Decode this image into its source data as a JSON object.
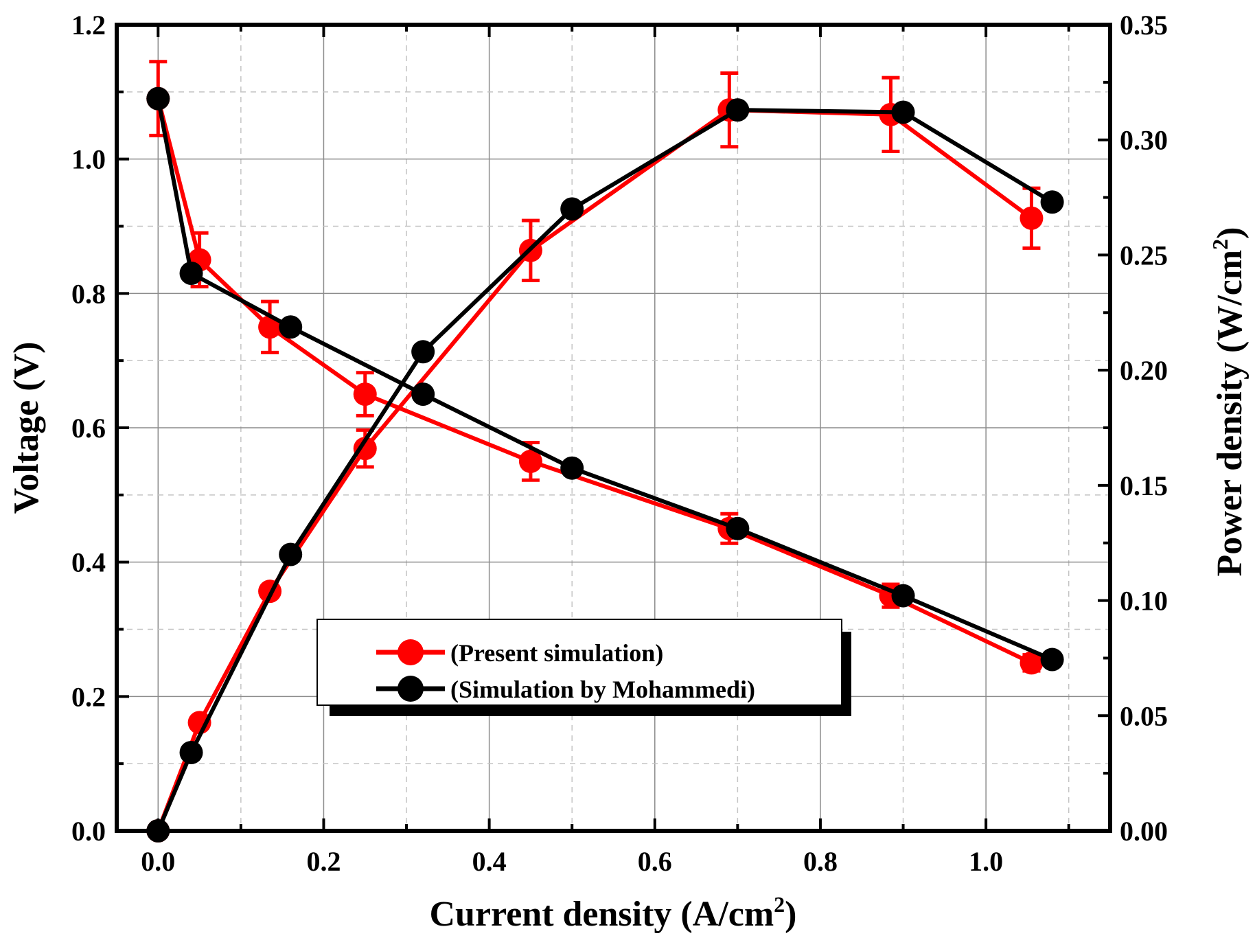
{
  "chart_data": {
    "type": "line",
    "xlabel": "Current density (A/cm",
    "xlabel_sup": "2",
    "xlabel_end": ")",
    "ylabel_left": "Voltage (V)",
    "ylabel_right": "Power density (W/cm",
    "ylabel_right_sup": "2",
    "ylabel_right_end": ")",
    "xlim": [
      -0.05,
      1.15
    ],
    "ylim_left": [
      0,
      1.2
    ],
    "ylim_right": [
      0,
      0.35
    ],
    "x_ticks": [
      "0.0",
      "0.2",
      "0.4",
      "0.6",
      "0.8",
      "1.0"
    ],
    "x_tick_values": [
      0,
      0.2,
      0.4,
      0.6,
      0.8,
      1.0
    ],
    "y_left_ticks": [
      "0.0",
      "0.2",
      "0.4",
      "0.6",
      "0.8",
      "1.0",
      "1.2"
    ],
    "y_left_tick_values": [
      0,
      0.2,
      0.4,
      0.6,
      0.8,
      1.0,
      1.2
    ],
    "y_right_ticks": [
      "0.00",
      "0.05",
      "0.10",
      "0.15",
      "0.20",
      "0.25",
      "0.30",
      "0.35"
    ],
    "y_right_tick_values": [
      0,
      0.05,
      0.1,
      0.15,
      0.2,
      0.25,
      0.3,
      0.35
    ],
    "grid": true,
    "legend_position": "lower-center",
    "series": [
      {
        "name": "(Present simulation)",
        "color": "#ff0000",
        "voltage": {
          "x": [
            0.0,
            0.05,
            0.135,
            0.25,
            0.45,
            0.69,
            0.885,
            1.055
          ],
          "y": [
            1.09,
            0.85,
            0.75,
            0.65,
            0.55,
            0.45,
            0.35,
            0.25
          ],
          "err": [
            0.055,
            0.04,
            0.038,
            0.032,
            0.028,
            0.022,
            0.017,
            0.012
          ]
        },
        "power": {
          "x": [
            0.0,
            0.05,
            0.135,
            0.25,
            0.45,
            0.69,
            0.885,
            1.055
          ],
          "y": [
            0.0,
            0.047,
            0.104,
            0.166,
            0.252,
            0.313,
            0.311,
            0.266
          ],
          "err": [
            0.0,
            0.0,
            0.0,
            0.008,
            0.013,
            0.016,
            0.016,
            0.013
          ]
        }
      },
      {
        "name": "(Simulation by Mohammedi)",
        "color": "#000000",
        "voltage": {
          "x": [
            0.0,
            0.04,
            0.16,
            0.32,
            0.5,
            0.7,
            0.9,
            1.08
          ],
          "y": [
            1.09,
            0.83,
            0.75,
            0.65,
            0.54,
            0.45,
            0.35,
            0.255
          ]
        },
        "power": {
          "x": [
            0.0,
            0.04,
            0.16,
            0.32,
            0.5,
            0.7,
            0.9,
            1.08
          ],
          "y": [
            0.0,
            0.034,
            0.12,
            0.208,
            0.27,
            0.313,
            0.312,
            0.273
          ]
        }
      }
    ]
  }
}
